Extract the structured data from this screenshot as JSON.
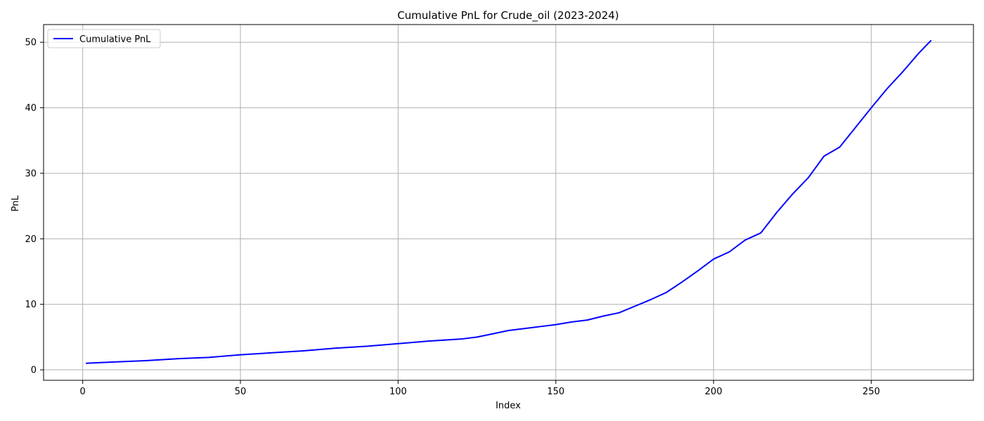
{
  "chart_data": {
    "type": "line",
    "title": "Cumulative PnL for Crude_oil (2023-2024)",
    "xlabel": "Index",
    "ylabel": "PnL",
    "xlim": [
      -12.4,
      282.4
    ],
    "ylim": [
      -1.6,
      52.7
    ],
    "xticks": [
      0,
      50,
      100,
      150,
      200,
      250
    ],
    "yticks": [
      0,
      10,
      20,
      30,
      40,
      50
    ],
    "grid": true,
    "legend_position": "upper-left",
    "series": [
      {
        "name": "Cumulative PnL",
        "color": "#0000ff",
        "x": [
          1,
          10,
          20,
          30,
          40,
          50,
          60,
          70,
          80,
          90,
          100,
          110,
          120,
          125,
          130,
          135,
          140,
          145,
          150,
          155,
          160,
          165,
          170,
          175,
          180,
          185,
          190,
          195,
          200,
          205,
          210,
          215,
          220,
          225,
          230,
          235,
          240,
          245,
          250,
          255,
          260,
          265,
          269
        ],
        "y": [
          1.0,
          1.2,
          1.4,
          1.7,
          1.9,
          2.3,
          2.6,
          2.9,
          3.3,
          3.6,
          4.0,
          4.4,
          4.7,
          5.0,
          5.5,
          6.0,
          6.3,
          6.6,
          6.9,
          7.3,
          7.6,
          8.2,
          8.7,
          9.7,
          10.7,
          11.8,
          13.4,
          15.1,
          16.9,
          18.0,
          19.8,
          20.9,
          24.0,
          26.8,
          29.3,
          32.6,
          34.0,
          37.0,
          40.0,
          42.9,
          45.5,
          48.3,
          50.3
        ]
      }
    ]
  }
}
